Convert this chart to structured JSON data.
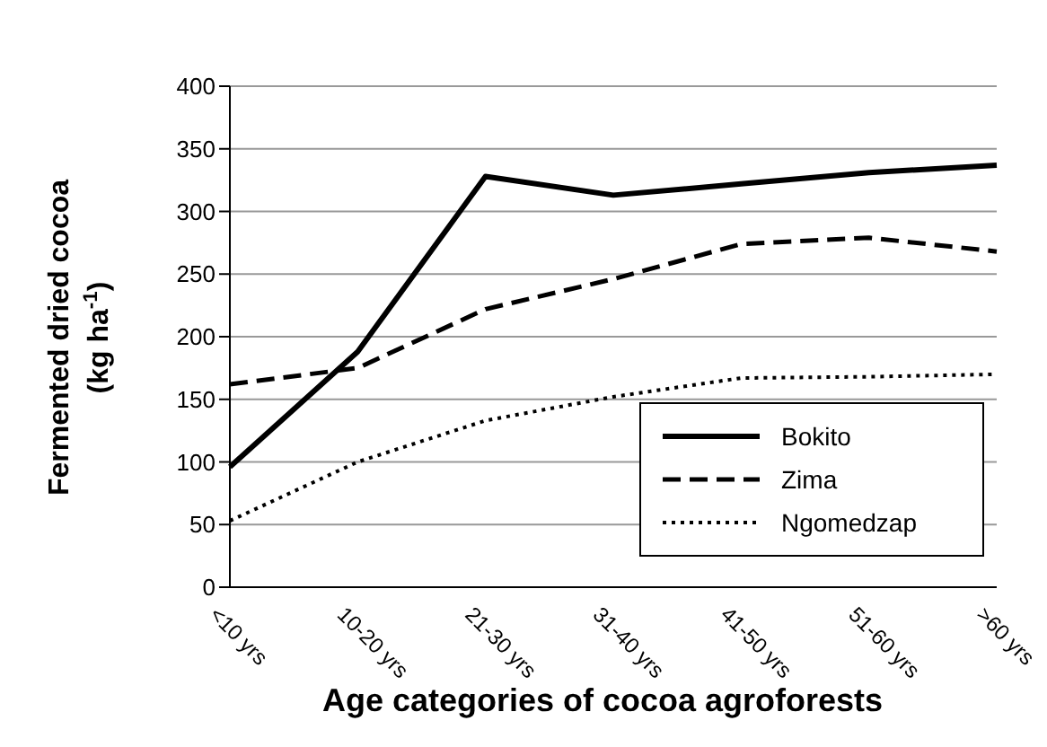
{
  "chart_data": {
    "type": "line",
    "xlabel": "Age categories of cocoa agroforests",
    "ylabel": "Fermented dried cocoa\n(kg ha$^{-1}$)",
    "categories": [
      "<10 yrs",
      "10-20 yrs",
      "21-30 yrs",
      "31-40 yrs",
      "41-50 yrs",
      "51-60 yrs",
      ">60 yrs"
    ],
    "series": [
      {
        "name": "Bokito",
        "color": "#000000",
        "line_style": "solid",
        "values": [
          96,
          188,
          328,
          313,
          322,
          331,
          337
        ]
      },
      {
        "name": "Zima",
        "color": "#000000",
        "line_style": "dashed",
        "values": [
          162,
          175,
          222,
          246,
          274,
          279,
          268
        ]
      },
      {
        "name": "Ngomedzap",
        "color": "#000000",
        "line_style": "dotted",
        "values": [
          53,
          100,
          133,
          152,
          167,
          168,
          170
        ]
      }
    ],
    "ylim": [
      0,
      400
    ],
    "yticks": [
      0,
      50,
      100,
      150,
      200,
      250,
      300,
      350,
      400
    ],
    "grid": "y",
    "legend": "bottom right",
    "marker": "none"
  }
}
